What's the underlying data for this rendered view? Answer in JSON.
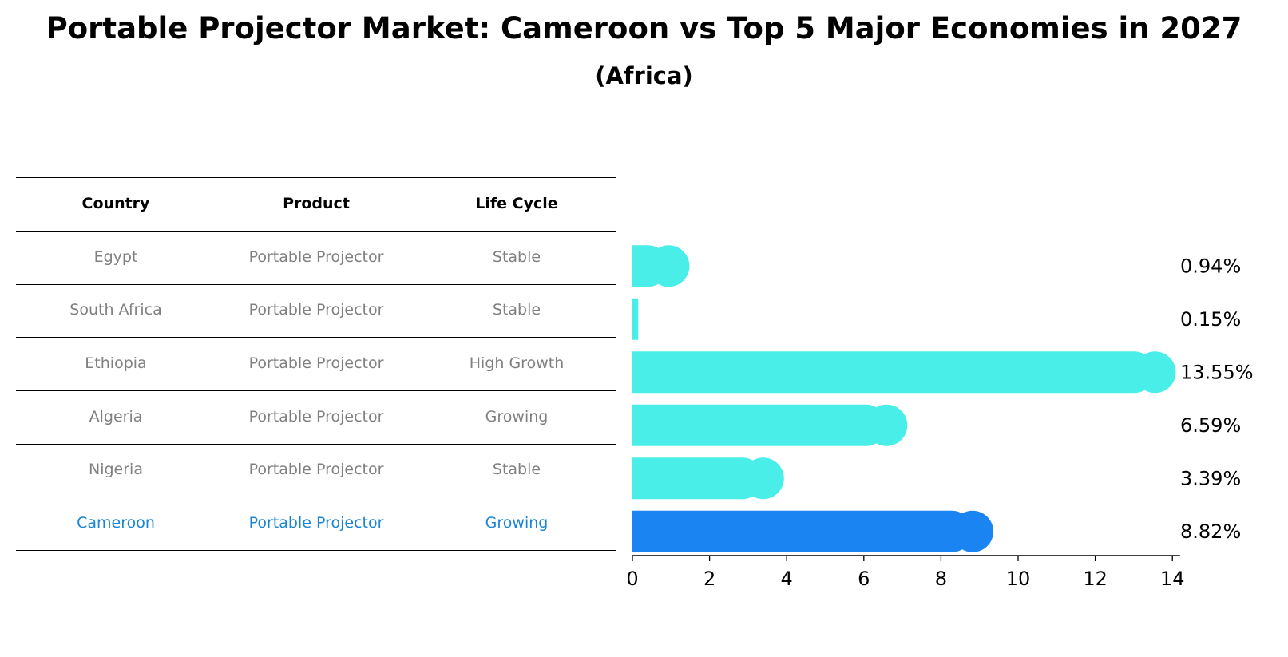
{
  "title": "Portable Projector Market: Cameroon vs Top 5 Major Economies in 2027",
  "subtitle": "(Africa)",
  "table": {
    "headers": [
      "Country",
      "Product",
      "Life Cycle"
    ],
    "rows": [
      {
        "country": "Egypt",
        "product": "Portable Projector",
        "life_cycle": "Stable"
      },
      {
        "country": "South Africa",
        "product": "Portable Projector",
        "life_cycle": "Stable"
      },
      {
        "country": "Ethiopia",
        "product": "Portable Projector",
        "life_cycle": "High Growth"
      },
      {
        "country": "Algeria",
        "product": "Portable Projector",
        "life_cycle": "Growing"
      },
      {
        "country": "Nigeria",
        "product": "Portable Projector",
        "life_cycle": "Stable"
      },
      {
        "country": "Cameroon",
        "product": "Portable Projector",
        "life_cycle": "Growing"
      }
    ],
    "highlight_row": 5
  },
  "colors": {
    "bar": "#4aeee9",
    "highlight_bar": "#1a85f2",
    "highlight_text": "#1a85d6",
    "muted_text": "#808080"
  },
  "chart_data": {
    "type": "bar",
    "orientation": "horizontal",
    "categories": [
      "Egypt",
      "South Africa",
      "Ethiopia",
      "Algeria",
      "Nigeria",
      "Cameroon"
    ],
    "values": [
      0.94,
      0.15,
      13.55,
      6.59,
      3.39,
      8.82
    ],
    "value_labels": [
      "0.94%",
      "0.15%",
      "13.55%",
      "6.59%",
      "3.39%",
      "8.82%"
    ],
    "highlight": "Cameroon",
    "xlim": [
      0,
      14.2
    ],
    "xticks": [
      0,
      2,
      4,
      6,
      8,
      10,
      12,
      14
    ],
    "xlabel": "",
    "ylabel": ""
  }
}
